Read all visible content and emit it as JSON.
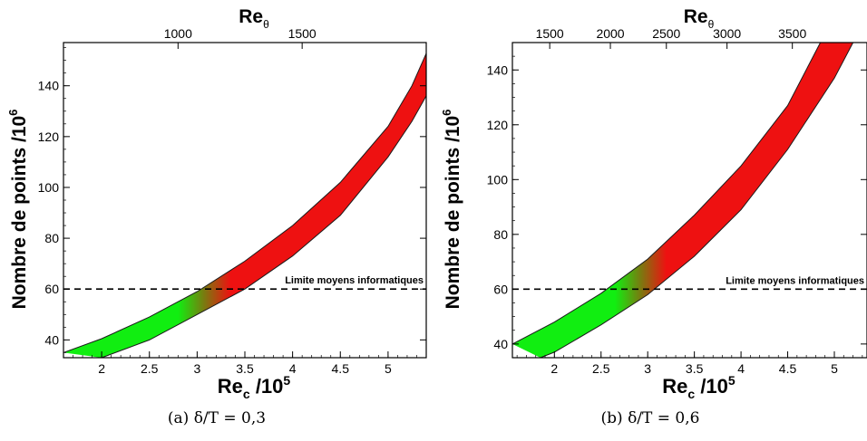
{
  "chart_data": [
    {
      "type": "area",
      "caption": "(a) δ/T = 0,3",
      "top_axis_label": "Re",
      "top_axis_label_sub": "θ",
      "top_ticks": [
        {
          "label": "1000",
          "x": 2.8
        },
        {
          "label": "1500",
          "x": 4.1
        }
      ],
      "xlabel": "Re",
      "xlabel_sub": "c",
      "xlabel_suffix": " /10",
      "xlabel_sup": "5",
      "ylabel": "Nombre de points /10",
      "ylabel_sup": "6",
      "xlim": [
        1.6,
        5.4
      ],
      "ylim": [
        33,
        157
      ],
      "xticks": [
        {
          "label": "2",
          "value": 2
        },
        {
          "label": "2.5",
          "value": 2.5
        },
        {
          "label": "3",
          "value": 3
        },
        {
          "label": "3.5",
          "value": 3.5
        },
        {
          "label": "4",
          "value": 4
        },
        {
          "label": "4.5",
          "value": 4.5
        },
        {
          "label": "5",
          "value": 5
        }
      ],
      "yticks": [
        {
          "label": "40",
          "value": 40
        },
        {
          "label": "60",
          "value": 60
        },
        {
          "label": "80",
          "value": 80
        },
        {
          "label": "100",
          "value": 100
        },
        {
          "label": "120",
          "value": 120
        },
        {
          "label": "140",
          "value": 140
        }
      ],
      "band": {
        "upper": [
          [
            1.6,
            35
          ],
          [
            2.0,
            40.5
          ],
          [
            2.5,
            49
          ],
          [
            3.0,
            59
          ],
          [
            3.5,
            71
          ],
          [
            4.0,
            85
          ],
          [
            4.5,
            102
          ],
          [
            5.0,
            124
          ],
          [
            5.25,
            140
          ],
          [
            5.45,
            157
          ]
        ],
        "lower": [
          [
            2.0,
            33
          ],
          [
            2.5,
            40
          ],
          [
            3.0,
            50
          ],
          [
            3.5,
            60
          ],
          [
            4.0,
            73
          ],
          [
            4.5,
            89
          ],
          [
            5.0,
            112
          ],
          [
            5.25,
            126
          ],
          [
            5.4,
            136
          ]
        ],
        "color_low": "#11ee11",
        "color_high": "#ee1111",
        "transition_x": [
          2.8,
          3.35
        ]
      },
      "limit_line": {
        "y": 60,
        "label": "Limite moyens informatiques",
        "style": "dashed"
      }
    },
    {
      "type": "area",
      "caption": "(b) δ/T = 0,6",
      "top_axis_label": "Re",
      "top_axis_label_sub": "θ",
      "top_ticks": [
        {
          "label": "1500",
          "x": 1.95
        },
        {
          "label": "2000",
          "x": 2.6
        },
        {
          "label": "2500",
          "x": 3.2
        },
        {
          "label": "3000",
          "x": 3.85
        },
        {
          "label": "3500",
          "x": 4.55
        }
      ],
      "xlabel": "Re",
      "xlabel_sub": "c",
      "xlabel_suffix": " /10",
      "xlabel_sup": "5",
      "ylabel": "Nombre de points /10",
      "ylabel_sup": "6",
      "xlim": [
        1.55,
        5.35
      ],
      "ylim": [
        35,
        150
      ],
      "xticks": [
        {
          "label": "2",
          "value": 2
        },
        {
          "label": "2.5",
          "value": 2.5
        },
        {
          "label": "3",
          "value": 3
        },
        {
          "label": "3.5",
          "value": 3.5
        },
        {
          "label": "4",
          "value": 4
        },
        {
          "label": "4.5",
          "value": 4.5
        },
        {
          "label": "5",
          "value": 5
        }
      ],
      "yticks": [
        {
          "label": "40",
          "value": 40
        },
        {
          "label": "60",
          "value": 60
        },
        {
          "label": "80",
          "value": 80
        },
        {
          "label": "100",
          "value": 100
        },
        {
          "label": "120",
          "value": 120
        },
        {
          "label": "140",
          "value": 140
        }
      ],
      "band": {
        "upper": [
          [
            1.55,
            40
          ],
          [
            2.0,
            48
          ],
          [
            2.5,
            58.5
          ],
          [
            3.0,
            71
          ],
          [
            3.5,
            87
          ],
          [
            4.0,
            105
          ],
          [
            4.5,
            127
          ],
          [
            4.85,
            150
          ]
        ],
        "lower": [
          [
            1.85,
            35
          ],
          [
            2.0,
            37
          ],
          [
            2.5,
            47
          ],
          [
            3.0,
            58
          ],
          [
            3.5,
            72
          ],
          [
            4.0,
            89
          ],
          [
            4.5,
            111
          ],
          [
            5.0,
            137
          ],
          [
            5.2,
            150
          ]
        ],
        "color_low": "#11ee11",
        "color_high": "#ee1111",
        "transition_x": [
          2.65,
          3.2
        ]
      },
      "limit_line": {
        "y": 60,
        "label": "Limite moyens informatiques",
        "style": "dashed"
      }
    }
  ]
}
